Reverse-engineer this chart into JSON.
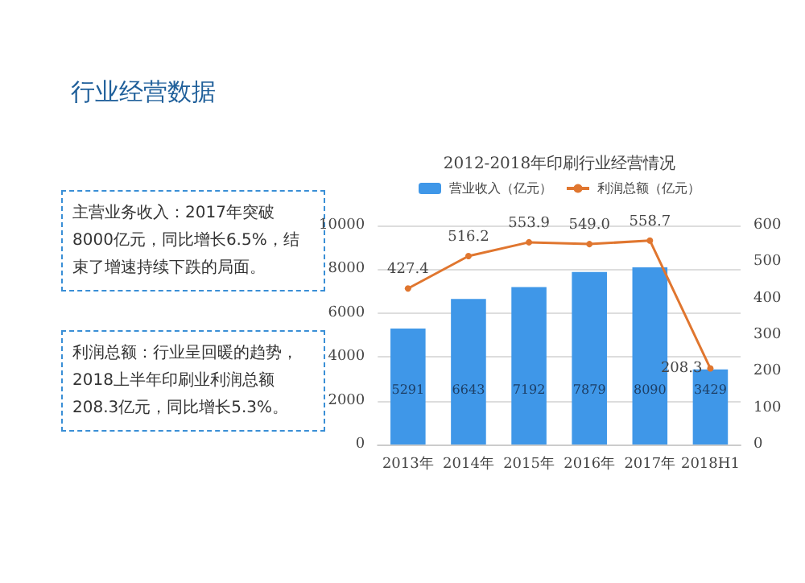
{
  "chart_data": {
    "type": "bar",
    "title": "2012-2018年印刷行业经营情况",
    "annotations": [
      "行业经营数据",
      "主营业务收入：2017年突破8000亿元，同比增长6.5%，结束了增速持续下跌的局面。",
      "利润总额：行业呈回暖的趋势，2018上半年印刷业利润总额208.3亿元，同比增长5.3%。"
    ],
    "categories": [
      "2013年",
      "2014年",
      "2015年",
      "2016年",
      "2017年",
      "2018H1"
    ],
    "series": [
      {
        "name": "营业收入（亿元）",
        "color": "#3f97e8",
        "values": [
          5291,
          6643,
          7192,
          7879,
          8090,
          3429
        ],
        "value_labels": [
          "5291",
          "6643",
          "7192",
          "7879",
          "8090",
          "3429"
        ]
      },
      {
        "name": "利润总额（亿元）",
        "type": "line",
        "axis": "y2",
        "color": "#e0762f",
        "marker": "circle",
        "values": [
          427.4,
          516.2,
          553.9,
          549.0,
          558.7,
          208.3
        ],
        "value_labels": [
          "427.4",
          "516.2",
          "553.9",
          "549.0",
          "558.7",
          "208.3"
        ]
      }
    ],
    "ylim": [
      0,
      10000
    ],
    "yticks": [
      0,
      2000,
      4000,
      6000,
      8000,
      10000
    ],
    "y2lim": [
      0,
      600
    ],
    "y2ticks": [
      0,
      100,
      200,
      300,
      400,
      500,
      600
    ],
    "grid": "y",
    "legend": "top"
  }
}
